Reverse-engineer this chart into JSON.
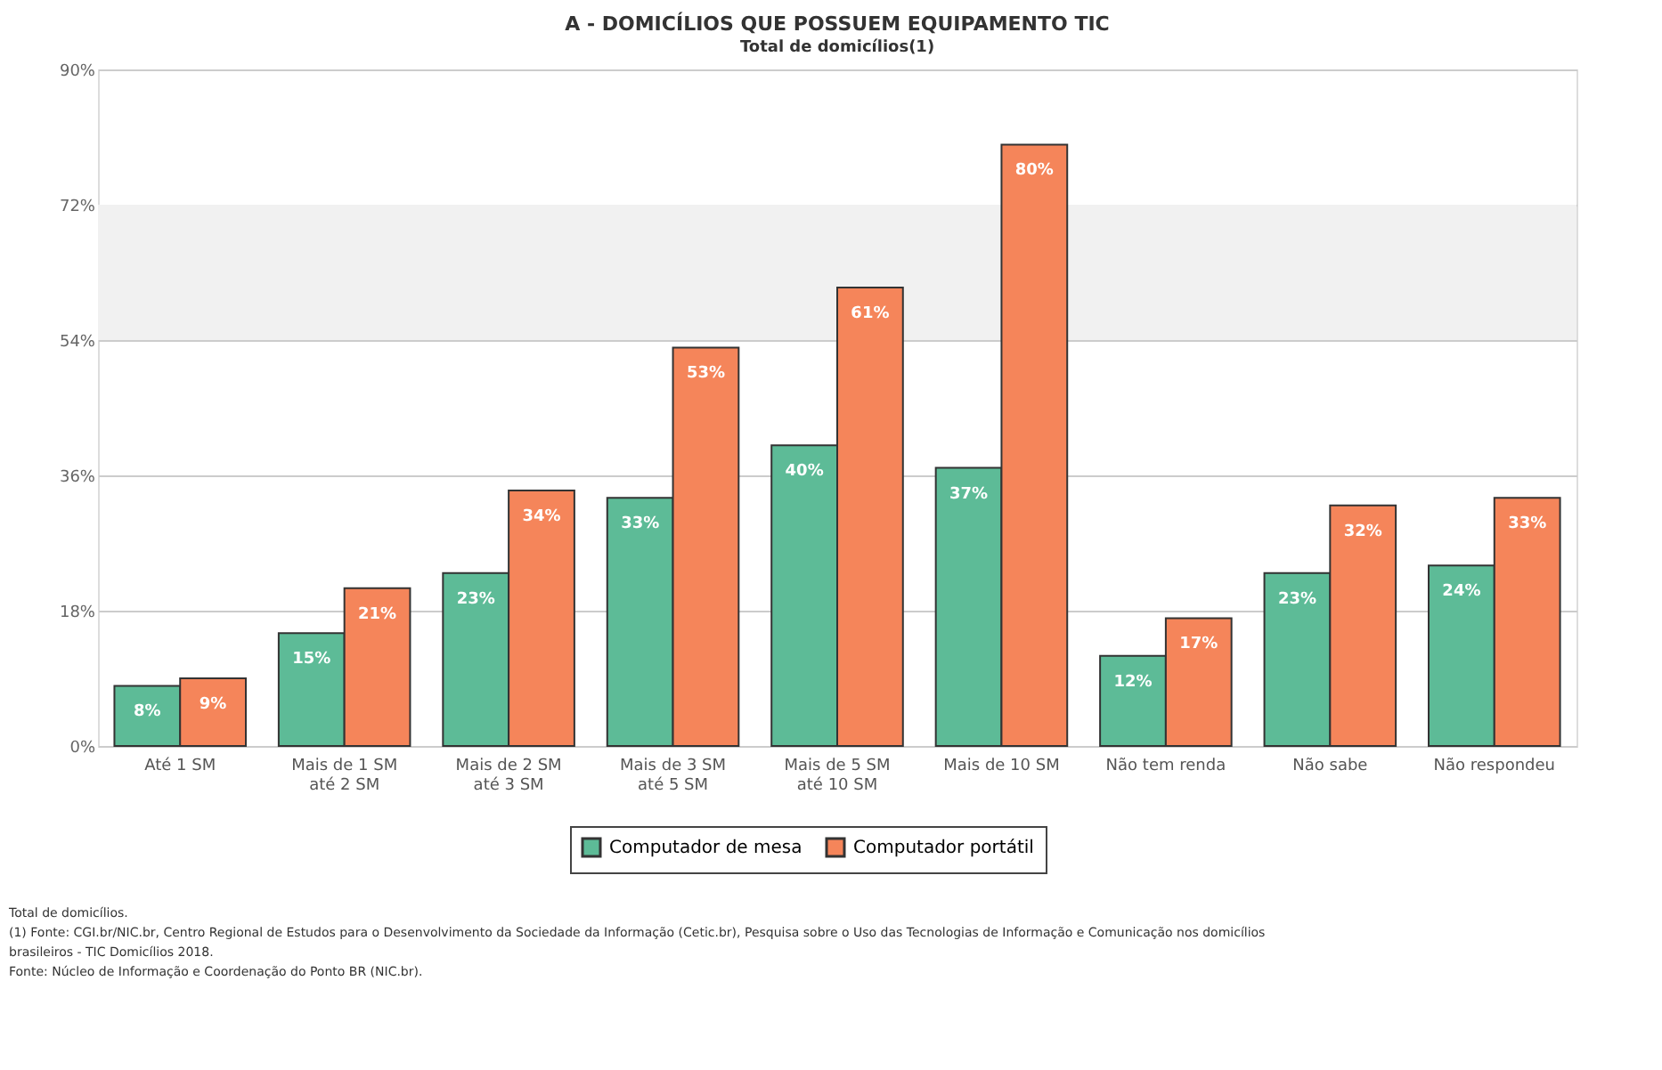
{
  "chart_data": {
    "type": "bar",
    "title": "A - DOMICÍLIOS QUE POSSUEM EQUIPAMENTO TIC",
    "subtitle": "Total de domicílios(1)",
    "categories": [
      "Até 1 SM",
      "Mais de 1 SM até 2 SM",
      "Mais de 2 SM até 3 SM",
      "Mais de 3 SM até 5 SM",
      "Mais de 5 SM até 10 SM",
      "Mais de 10 SM",
      "Não tem renda",
      "Não sabe",
      "Não respondeu"
    ],
    "series": [
      {
        "name": "Computador de mesa",
        "color": "#5dbb97",
        "values": [
          8,
          15,
          23,
          33,
          40,
          37,
          12,
          23,
          24
        ],
        "value_labels": [
          "8%",
          "15%",
          "23%",
          "33%",
          "40%",
          "37%",
          "12%",
          "23%",
          "24%"
        ]
      },
      {
        "name": "Computador portátil",
        "color": "#f5855a",
        "values": [
          9,
          21,
          34,
          53,
          61,
          80,
          17,
          32,
          33
        ],
        "value_labels": [
          "9%",
          "21%",
          "34%",
          "53%",
          "61%",
          "80%",
          "17%",
          "32%",
          "33%"
        ]
      }
    ],
    "ylim": [
      0,
      90
    ],
    "yticks": [
      {
        "value": 0,
        "label": "0%"
      },
      {
        "value": 18,
        "label": "18%"
      },
      {
        "value": 36,
        "label": "36%"
      },
      {
        "value": 54,
        "label": "54%"
      },
      {
        "value": 72,
        "label": "72%"
      },
      {
        "value": 90,
        "label": "90%"
      }
    ],
    "bands": [
      {
        "axis": "y",
        "from": 54,
        "to": 72,
        "color": "#f1f1f1"
      }
    ],
    "grid": "y",
    "legend": "bottom",
    "annotations": [
      "Total de domicílios.",
      "(1) Fonte: CGI.br/NIC.br, Centro Regional de Estudos para o Desenvolvimento da Sociedade da Informação (Cetic.br), Pesquisa sobre o Uso das Tecnologias de Informação e Comunicação nos domicílios brasileiros - TIC Domicílios 2018.",
      "Fonte: Núcleo de Informação e Coordenação do Ponto BR (NIC.br)."
    ]
  }
}
